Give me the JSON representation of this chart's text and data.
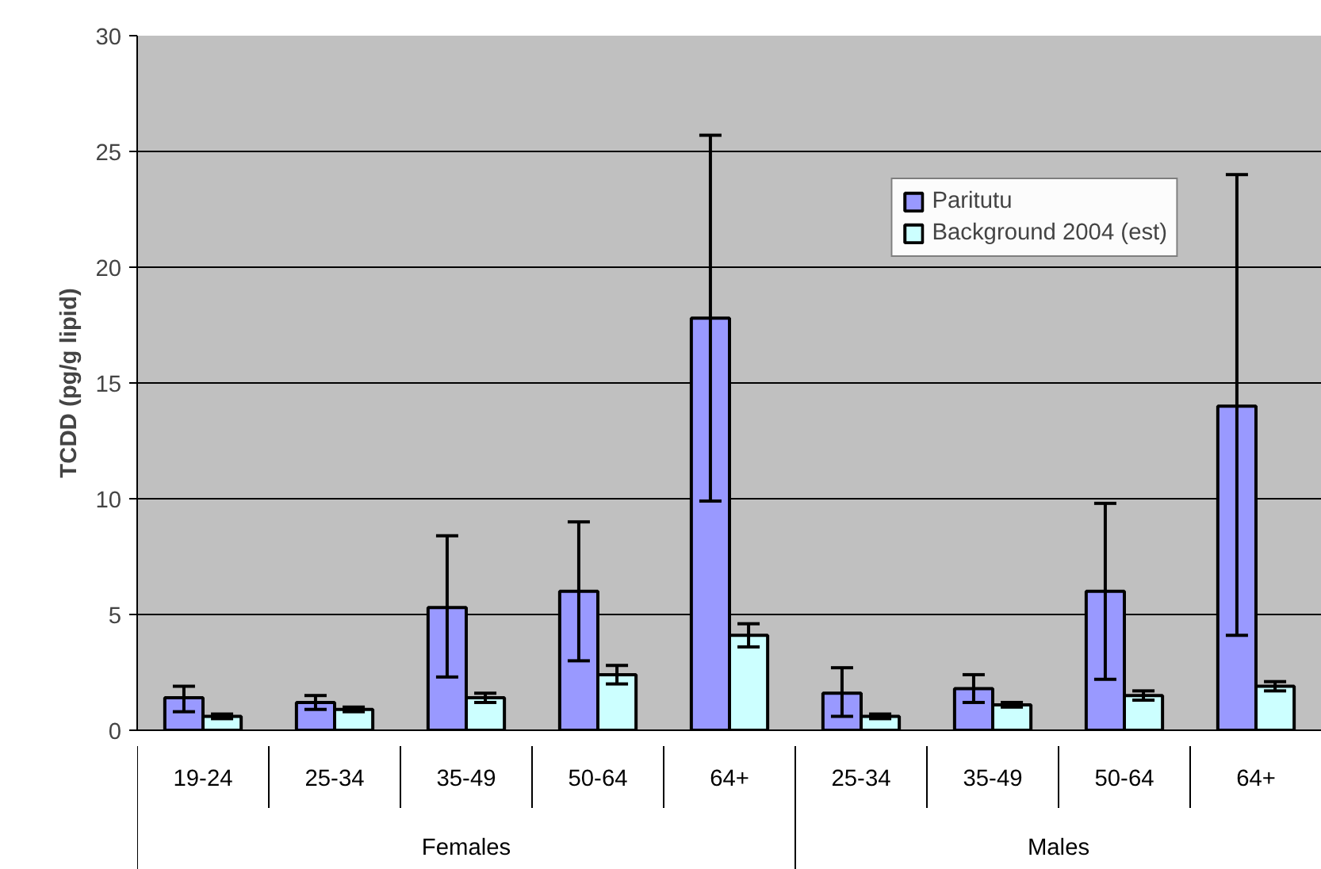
{
  "chart_data": {
    "type": "bar",
    "ylabel": "TCDD (pg/g lipid)",
    "categories": [
      "19-24",
      "25-34",
      "35-49",
      "50-64",
      "64+",
      "25-34",
      "35-49",
      "50-64",
      "64+"
    ],
    "series": [
      {
        "name": "Paritutu",
        "color": "#9999ff",
        "values": [
          1.4,
          1.2,
          5.3,
          6.0,
          17.8,
          1.6,
          1.8,
          6.0,
          14.0
        ],
        "errors": [
          [
            0.8,
            1.9
          ],
          [
            0.9,
            1.5
          ],
          [
            2.3,
            8.4
          ],
          [
            3.0,
            9.0
          ],
          [
            9.9,
            25.7
          ],
          [
            0.6,
            2.7
          ],
          [
            1.2,
            2.4
          ],
          [
            2.2,
            9.8
          ],
          [
            4.1,
            24.0
          ]
        ]
      },
      {
        "name": "Background 2004 (est)",
        "color": "#ccffff",
        "values": [
          0.6,
          0.9,
          1.4,
          2.4,
          4.1,
          0.6,
          1.1,
          1.5,
          1.9
        ],
        "errors": [
          [
            0.5,
            0.7
          ],
          [
            0.8,
            1.0
          ],
          [
            1.2,
            1.6
          ],
          [
            2.0,
            2.8
          ],
          [
            3.6,
            4.6
          ],
          [
            0.5,
            0.7
          ],
          [
            1.0,
            1.2
          ],
          [
            1.3,
            1.7
          ],
          [
            1.7,
            2.1
          ]
        ]
      }
    ],
    "annotations": [
      "Females",
      "Males"
    ],
    "ylim": [
      0,
      30
    ],
    "yticks": [
      0,
      5,
      10,
      15,
      20,
      25,
      30
    ],
    "grid": "y",
    "legend": "top right"
  }
}
